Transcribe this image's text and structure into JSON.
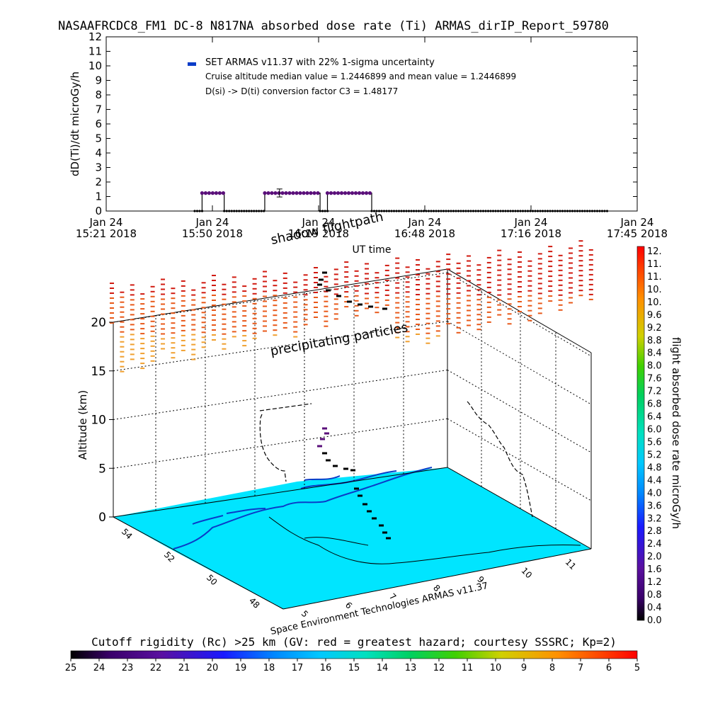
{
  "header": {
    "title": "NASAAFRCDC8_FM1 DC-8   N817NA absorbed dose rate (Ti) ARMAS_dirIP_Report_59780"
  },
  "chart_data": [
    {
      "type": "scatter",
      "panel": "time-series",
      "ylabel": "dD(Ti)/dt microGy/h",
      "xlabel": "UT time",
      "ylim": [
        0,
        12
      ],
      "yticks": [
        0,
        1,
        2,
        3,
        4,
        5,
        6,
        7,
        8,
        9,
        10,
        11,
        12
      ],
      "xticks": [
        {
          "top": "Jan 24",
          "bottom": "15:21 2018"
        },
        {
          "top": "Jan 24",
          "bottom": "15:50 2018"
        },
        {
          "top": "Jan 24",
          "bottom": "16:19 2018"
        },
        {
          "top": "Jan 24",
          "bottom": "16:48 2018"
        },
        {
          "top": "Jan 24",
          "bottom": "17:16 2018"
        },
        {
          "top": "Jan 24",
          "bottom": "17:45 2018"
        }
      ],
      "legend": {
        "placement": "top-left",
        "entries": [
          "SET ARMAS v11.37 with 22% 1-sigma uncertainty",
          "Cruise altitude median value = 1.2446899 and mean value = 1.2446899",
          "D(si) -> D(ti) conversion factor C3 = 1.48177"
        ]
      },
      "series": [
        {
          "name": "SET ARMAS v11.37",
          "color": "#5a0f7a",
          "segments": [
            {
              "t_start": "15:45",
              "t_end": "15:47",
              "value": 0
            },
            {
              "t_start": "15:47",
              "t_end": "15:53",
              "value": 1.24
            },
            {
              "t_start": "15:53",
              "t_end": "16:04",
              "value": 0
            },
            {
              "t_start": "16:04",
              "t_end": "16:19",
              "value": 1.24
            },
            {
              "t_start": "16:19",
              "t_end": "16:21",
              "value": 0
            },
            {
              "t_start": "16:21",
              "t_end": "16:33",
              "value": 1.24
            },
            {
              "t_start": "16:33",
              "t_end": "17:37",
              "value": 0
            }
          ],
          "error_bar": {
            "t": "16:08",
            "value": 1.24,
            "low": 0.97,
            "high": 1.52
          }
        }
      ]
    },
    {
      "type": "scatter",
      "panel": "3d-altitude",
      "zlabel": "Altitude (km)",
      "zticks": [
        0,
        5,
        10,
        15,
        20
      ],
      "latitude_ticks": [
        48,
        50,
        52,
        54
      ],
      "longitude_ticks": [
        5,
        6,
        7,
        8,
        9,
        10,
        11
      ],
      "annotations": [
        "shadow flightpath",
        "precipitating particles",
        "Space Environment Technologies ARMAS v11.37"
      ],
      "flight_altitude_km": {
        "cruise": 10.5,
        "min": 0
      }
    },
    {
      "type": "colorbar",
      "orientation": "vertical",
      "label": "flight absorbed dose rate microGy/h",
      "ticks": [
        "12.",
        "11.",
        "11.",
        "10.",
        "10.",
        "9.6",
        "9.2",
        "8.8",
        "8.4",
        "8.0",
        "7.6",
        "7.2",
        "6.8",
        "6.4",
        "6.0",
        "5.6",
        "5.2",
        "4.8",
        "4.4",
        "4.0",
        "3.6",
        "3.2",
        "2.8",
        "2.4",
        "2.0",
        "1.6",
        "1.2",
        "0.8",
        "0.4",
        "0.0"
      ]
    },
    {
      "type": "colorbar",
      "orientation": "horizontal",
      "label": "Cutoff rigidity (Rc) >25 km (GV: red = greatest hazard; courtesy SSSRC; Kp=2)",
      "ticks": [
        "25",
        "24",
        "23",
        "22",
        "21",
        "20",
        "19",
        "18",
        "17",
        "16",
        "15",
        "14",
        "13",
        "12",
        "11",
        "10",
        "9",
        "8",
        "7",
        "6",
        "5"
      ]
    }
  ],
  "colors": {
    "dose_series": "#5a0f7a",
    "map_land": "#00e5ff",
    "coast": "#0a3cc8",
    "particles": "#e8591a",
    "axes": "#000000"
  }
}
